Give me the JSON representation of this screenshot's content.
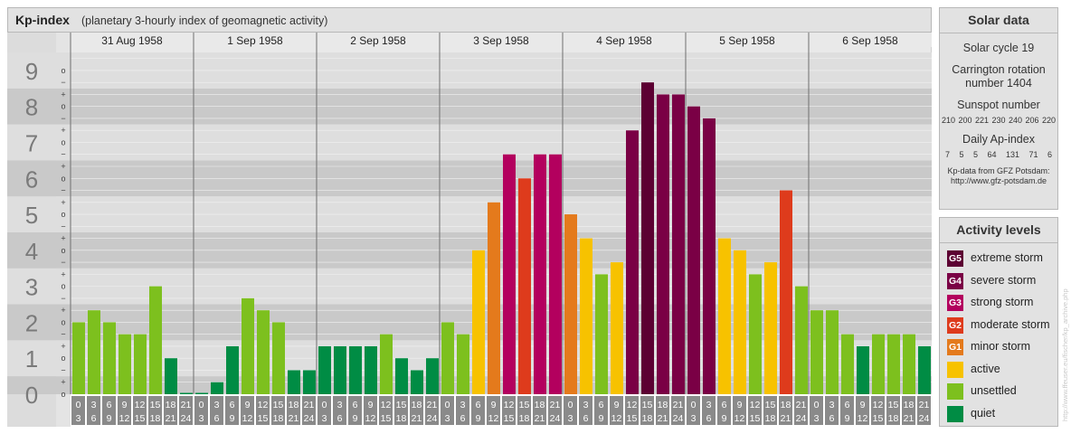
{
  "header": {
    "title": "Kp-index",
    "subtitle": "(planetary 3-hourly index of geomagnetic activity)"
  },
  "solar": {
    "title": "Solar data",
    "cycle": "Solar cycle 19",
    "carrington": "Carrington rotation number 1404",
    "sunspot_label": "Sunspot number",
    "sunspot_values": "210 200 221 230 240 206 220",
    "ap_label": "Daily Ap-index",
    "ap_values": "7 5 5 64 131 71 6",
    "credit_line1": "Kp-data from GFZ Potsdam:",
    "credit_line2": "http://www.gfz-potsdam.de"
  },
  "levels": {
    "title": "Activity levels",
    "items": [
      {
        "badge": "G5",
        "label": "extreme storm",
        "color": "#5c0032"
      },
      {
        "badge": "G4",
        "label": "severe storm",
        "color": "#7a0045"
      },
      {
        "badge": "G3",
        "label": "strong storm",
        "color": "#b3005e"
      },
      {
        "badge": "G2",
        "label": "moderate storm",
        "color": "#de3b1c"
      },
      {
        "badge": "G1",
        "label": "minor storm",
        "color": "#e47a1c"
      },
      {
        "badge": "",
        "label": "active",
        "color": "#f7c200"
      },
      {
        "badge": "",
        "label": "unsettled",
        "color": "#7dc01e"
      },
      {
        "badge": "",
        "label": "quiet",
        "color": "#008c44"
      }
    ]
  },
  "watermark": "http://www.ffeuser.eu/fischer/kp_archive.php",
  "chart_data": {
    "type": "bar",
    "ylim": [
      0,
      9
    ],
    "yticks": [
      "0",
      "1",
      "2",
      "3",
      "4",
      "5",
      "6",
      "7",
      "8",
      "9"
    ],
    "minor_marks": [
      "o",
      "+",
      "−",
      "o",
      "+",
      "−",
      "o",
      "+",
      "−",
      "o",
      "+",
      "−",
      "o",
      "+",
      "−",
      "o",
      "+",
      "−",
      "o",
      "+",
      "−",
      "o",
      "+",
      "−",
      "o",
      "+",
      "−",
      "o"
    ],
    "days": [
      "31 Aug 1958",
      "1 Sep 1958",
      "2 Sep 1958",
      "3 Sep 1958",
      "4 Sep 1958",
      "5 Sep 1958",
      "6 Sep 1958"
    ],
    "intervals": [
      [
        "0",
        "3"
      ],
      [
        "3",
        "6"
      ],
      [
        "6",
        "9"
      ],
      [
        "9",
        "12"
      ],
      [
        "12",
        "15"
      ],
      [
        "15",
        "18"
      ],
      [
        "18",
        "21"
      ],
      [
        "21",
        "24"
      ]
    ],
    "values": [
      [
        2.0,
        2.333,
        2.0,
        1.667,
        1.667,
        3.0,
        1.0,
        0.0
      ],
      [
        0.0,
        0.333,
        1.333,
        2.667,
        2.333,
        2.0,
        0.667,
        0.667
      ],
      [
        1.333,
        1.333,
        1.333,
        1.333,
        1.667,
        1.0,
        0.667,
        1.0
      ],
      [
        2.0,
        1.667,
        4.0,
        5.333,
        6.667,
        6.0,
        6.667,
        6.667
      ],
      [
        5.0,
        4.333,
        3.333,
        3.667,
        7.333,
        8.667,
        8.333,
        8.333
      ],
      [
        8.0,
        7.667,
        4.333,
        4.0,
        3.333,
        3.667,
        5.667,
        3.0
      ],
      [
        2.333,
        2.333,
        1.667,
        1.333,
        1.667,
        1.667,
        1.667,
        1.333
      ]
    ],
    "colors": {
      "quiet": "#008c44",
      "unsettled": "#7dc01e",
      "active": "#f7c200",
      "G1": "#e47a1c",
      "G2": "#de3b1c",
      "G3": "#b3005e",
      "G4": "#7a0045",
      "G5": "#5c0032"
    }
  }
}
